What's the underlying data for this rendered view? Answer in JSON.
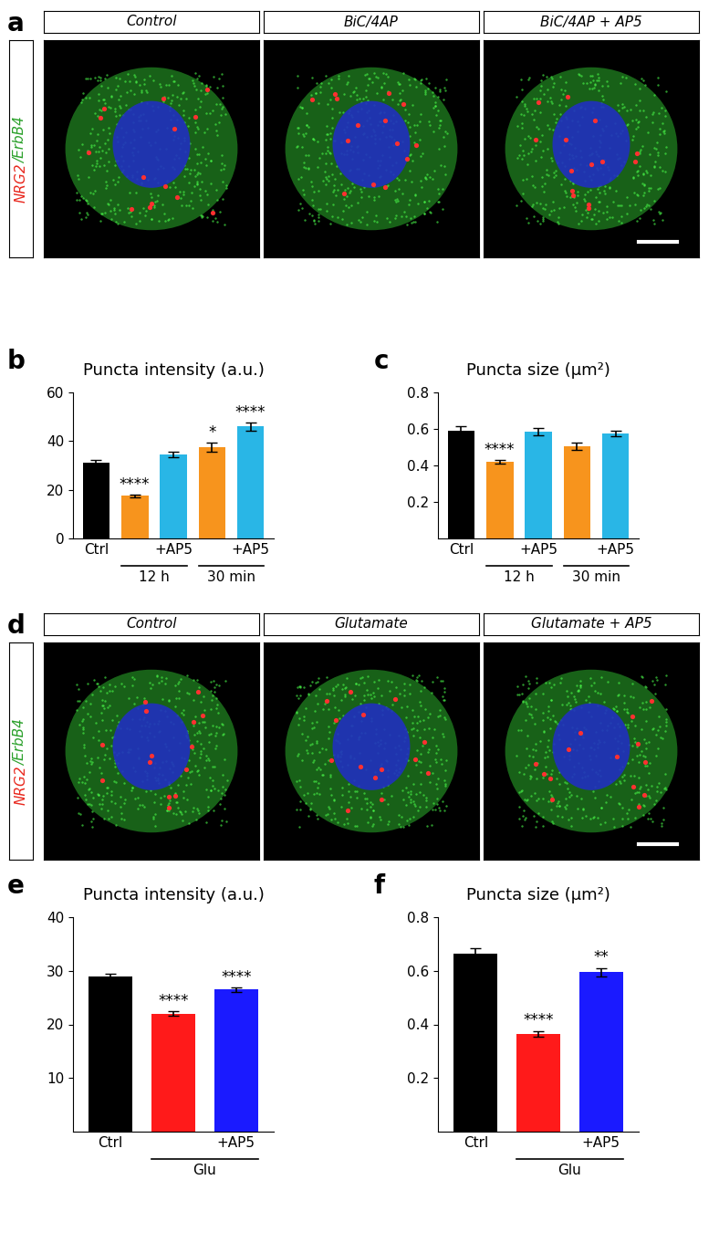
{
  "image_panels": [
    {
      "letter": "a",
      "panel_titles": [
        "Control",
        "BiC/4AP",
        "BiC/4AP + AP5"
      ],
      "channel_label": [
        {
          "text": "NRG2",
          "color": "#e8281e"
        },
        {
          "text": "/ErbB4",
          "color": "#2aa02a"
        }
      ]
    },
    {
      "letter": "d",
      "panel_titles": [
        "Control",
        "Glutamate",
        "Glutamate + AP5"
      ],
      "channel_label": [
        {
          "text": "NRG2",
          "color": "#e8281e"
        },
        {
          "text": "/ErbB4",
          "color": "#2aa02a"
        }
      ]
    }
  ],
  "chart_data": [
    {
      "type": "bar",
      "letter": "b",
      "title": "Puncta intensity (a.u.)",
      "categories": [
        "Ctrl",
        null,
        "+AP5",
        null,
        "+AP5"
      ],
      "values": [
        31,
        17.5,
        34.5,
        37.5,
        46
      ],
      "errors": [
        1.2,
        0.6,
        1.3,
        2.0,
        1.8
      ],
      "significance": [
        null,
        "****",
        null,
        "*",
        "****"
      ],
      "groups": [
        {
          "text": "12 h",
          "categories": [
            1,
            2
          ]
        },
        {
          "text": "30 min",
          "categories": [
            3,
            4
          ]
        }
      ],
      "colors": [
        "#000000",
        "#f7941d",
        "#29b6e6",
        "#f7941d",
        "#29b6e6"
      ],
      "ylim": [
        0,
        60
      ],
      "yticks": [
        0,
        20,
        40,
        60
      ]
    },
    {
      "type": "bar",
      "letter": "c",
      "title": "Puncta size (μm²)",
      "categories": [
        "Ctrl",
        null,
        "+AP5",
        null,
        "+AP5"
      ],
      "values": [
        0.59,
        0.42,
        0.585,
        0.505,
        0.575
      ],
      "errors": [
        0.025,
        0.012,
        0.02,
        0.02,
        0.015
      ],
      "significance": [
        null,
        "****",
        null,
        null,
        null
      ],
      "groups": [
        {
          "text": "12 h",
          "categories": [
            1,
            2
          ]
        },
        {
          "text": "30 min",
          "categories": [
            3,
            4
          ]
        }
      ],
      "colors": [
        "#000000",
        "#f7941d",
        "#29b6e6",
        "#f7941d",
        "#29b6e6"
      ],
      "ylim": [
        0,
        0.8
      ],
      "yticks": [
        0.2,
        0.4,
        0.6,
        0.8
      ]
    },
    {
      "type": "bar",
      "letter": "e",
      "title": "Puncta intensity (a.u.)",
      "categories": [
        "Ctrl",
        null,
        "+AP5"
      ],
      "values": [
        29,
        22,
        26.5
      ],
      "errors": [
        0.5,
        0.4,
        0.4
      ],
      "significance": [
        null,
        "****",
        "****"
      ],
      "groups": [
        {
          "text": "Glu",
          "categories": [
            1,
            2
          ]
        }
      ],
      "colors": [
        "#000000",
        "#ff1a1a",
        "#1a1aff"
      ],
      "ylim": [
        0,
        40
      ],
      "yticks": [
        10,
        20,
        30,
        40
      ]
    },
    {
      "type": "bar",
      "letter": "f",
      "title": "Puncta size (μm²)",
      "categories": [
        "Ctrl",
        null,
        "+AP5"
      ],
      "values": [
        0.665,
        0.365,
        0.595
      ],
      "errors": [
        0.02,
        0.01,
        0.015
      ],
      "significance": [
        null,
        "****",
        "**"
      ],
      "groups": [
        {
          "text": "Glu",
          "categories": [
            1,
            2
          ]
        }
      ],
      "colors": [
        "#000000",
        "#ff1a1a",
        "#1a1aff"
      ],
      "ylim": [
        0,
        0.8
      ],
      "yticks": [
        0.2,
        0.4,
        0.6,
        0.8
      ]
    }
  ]
}
